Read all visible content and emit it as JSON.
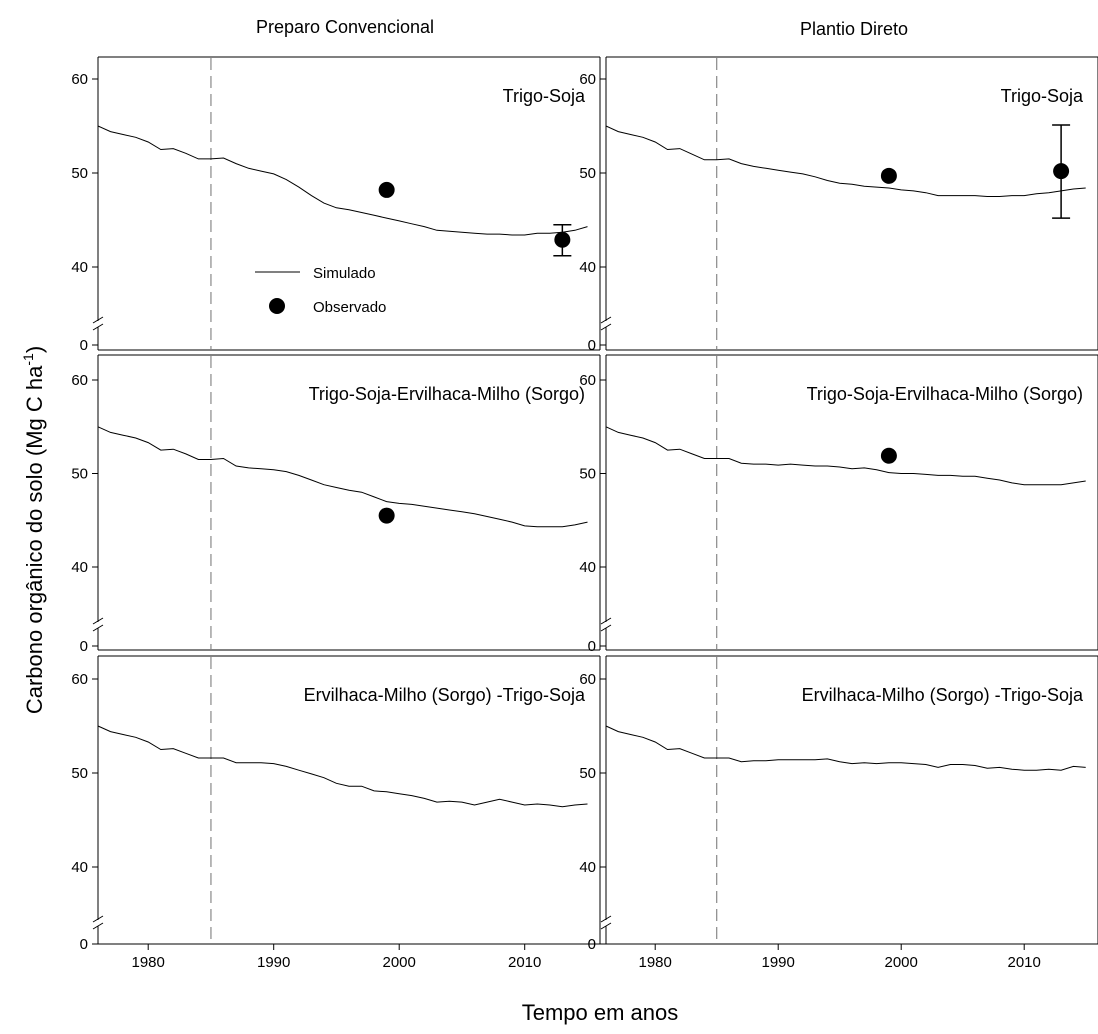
{
  "chart_data": {
    "type": "line",
    "column_titles": [
      "Preparo Convencional",
      "Plantio Direto"
    ],
    "xlabel": "Tempo em anos",
    "ylabel": "Carbono orgânico do solo (Mg C ha",
    "ylabel_superscript": "-1",
    "ylabel_close": ")",
    "xlim": [
      1976,
      2016
    ],
    "xticks": [
      1980,
      1990,
      2000,
      2010
    ],
    "ylim": [
      35,
      62
    ],
    "yticks": [
      40,
      50,
      60
    ],
    "y_break_label": 0,
    "y_axis_break": true,
    "reference_line_x": 1985,
    "legend": {
      "items": [
        "Simulado",
        "Observado"
      ],
      "location": "top-left panel, lower-middle"
    },
    "sim_years": [
      1976,
      1977,
      1978,
      1979,
      1980,
      1981,
      1982,
      1983,
      1984,
      1985,
      1986,
      1987,
      1988,
      1989,
      1990,
      1991,
      1992,
      1993,
      1994,
      1995,
      1996,
      1997,
      1998,
      1999,
      2000,
      2001,
      2002,
      2003,
      2004,
      2005,
      2006,
      2007,
      2008,
      2009,
      2010,
      2011,
      2012,
      2013,
      2014,
      2015
    ],
    "panels": [
      {
        "title": "Trigo-Soja",
        "system": "Preparo Convencional",
        "simulado": [
          55.0,
          54.4,
          54.1,
          53.8,
          53.3,
          52.5,
          52.6,
          52.1,
          51.5,
          51.5,
          51.6,
          51.0,
          50.5,
          50.2,
          49.9,
          49.3,
          48.5,
          47.6,
          46.8,
          46.3,
          46.1,
          45.8,
          45.5,
          45.2,
          44.9,
          44.6,
          44.3,
          43.9,
          43.8,
          43.7,
          43.6,
          43.5,
          43.5,
          43.4,
          43.4,
          43.6,
          43.6,
          43.7,
          43.9,
          44.3
        ],
        "observado": [
          {
            "x": 1999,
            "y": 48.2
          },
          {
            "x": 2013,
            "y": 42.9,
            "err_low": 41.2,
            "err_high": 44.5
          }
        ]
      },
      {
        "title": "Trigo-Soja",
        "system": "Plantio Direto",
        "simulado": [
          55.0,
          54.4,
          54.1,
          53.8,
          53.3,
          52.5,
          52.6,
          52.0,
          51.4,
          51.4,
          51.5,
          51.0,
          50.7,
          50.5,
          50.3,
          50.1,
          49.9,
          49.6,
          49.2,
          48.9,
          48.8,
          48.6,
          48.5,
          48.4,
          48.2,
          48.1,
          47.9,
          47.6,
          47.6,
          47.6,
          47.6,
          47.5,
          47.5,
          47.6,
          47.6,
          47.8,
          47.9,
          48.1,
          48.3,
          48.4
        ],
        "observado": [
          {
            "x": 1999,
            "y": 49.7
          },
          {
            "x": 2013,
            "y": 50.2,
            "err_low": 45.2,
            "err_high": 55.1
          }
        ]
      },
      {
        "title": "Trigo-Soja-Ervilhaca-Milho (Sorgo)",
        "system": "Preparo Convencional",
        "simulado": [
          55.0,
          54.4,
          54.1,
          53.8,
          53.3,
          52.5,
          52.6,
          52.1,
          51.5,
          51.5,
          51.6,
          50.8,
          50.6,
          50.5,
          50.4,
          50.2,
          49.8,
          49.3,
          48.8,
          48.5,
          48.2,
          48.0,
          47.5,
          47.0,
          46.8,
          46.7,
          46.5,
          46.3,
          46.1,
          45.9,
          45.7,
          45.4,
          45.1,
          44.8,
          44.4,
          44.3,
          44.3,
          44.3,
          44.5,
          44.8
        ],
        "observado": [
          {
            "x": 1999,
            "y": 45.5
          }
        ]
      },
      {
        "title": "Trigo-Soja-Ervilhaca-Milho (Sorgo)",
        "system": "Plantio Direto",
        "simulado": [
          55.0,
          54.4,
          54.1,
          53.8,
          53.3,
          52.5,
          52.6,
          52.1,
          51.6,
          51.6,
          51.6,
          51.1,
          51.0,
          51.0,
          50.9,
          51.0,
          50.9,
          50.8,
          50.8,
          50.7,
          50.5,
          50.6,
          50.4,
          50.1,
          50.0,
          50.0,
          49.9,
          49.8,
          49.8,
          49.7,
          49.7,
          49.5,
          49.3,
          49.0,
          48.8,
          48.8,
          48.8,
          48.8,
          49.0,
          49.2
        ],
        "observado": [
          {
            "x": 1999,
            "y": 51.9
          }
        ]
      },
      {
        "title": "Ervilhaca-Milho (Sorgo) -Trigo-Soja",
        "system": "Preparo Convencional",
        "simulado": [
          55.0,
          54.4,
          54.1,
          53.8,
          53.3,
          52.5,
          52.6,
          52.1,
          51.6,
          51.6,
          51.6,
          51.1,
          51.1,
          51.1,
          51.0,
          50.7,
          50.3,
          49.9,
          49.5,
          48.9,
          48.6,
          48.6,
          48.1,
          48.0,
          47.8,
          47.6,
          47.3,
          46.9,
          47.0,
          46.9,
          46.6,
          46.9,
          47.2,
          46.9,
          46.6,
          46.7,
          46.6,
          46.4,
          46.6,
          46.7
        ],
        "observado": []
      },
      {
        "title": "Ervilhaca-Milho (Sorgo) -Trigo-Soja",
        "system": "Plantio Direto",
        "simulado": [
          55.0,
          54.4,
          54.1,
          53.8,
          53.3,
          52.5,
          52.6,
          52.1,
          51.6,
          51.6,
          51.6,
          51.2,
          51.3,
          51.3,
          51.4,
          51.4,
          51.4,
          51.4,
          51.5,
          51.2,
          51.0,
          51.1,
          51.0,
          51.1,
          51.1,
          51.0,
          50.9,
          50.6,
          50.9,
          50.9,
          50.8,
          50.5,
          50.6,
          50.4,
          50.3,
          50.3,
          50.4,
          50.3,
          50.7,
          50.6
        ],
        "observado": []
      }
    ]
  }
}
